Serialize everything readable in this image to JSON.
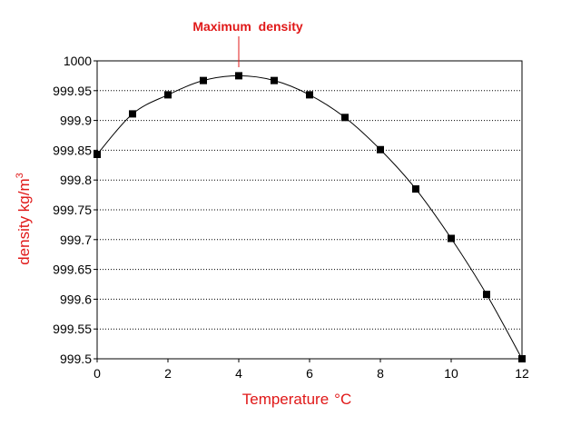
{
  "chart_data": {
    "type": "line",
    "title": "",
    "xlabel": "Temperature",
    "xlabel_unit": "°C",
    "ylabel": "density kg/m",
    "ylabel_sup": "3",
    "xlim": [
      0,
      12
    ],
    "ylim": [
      999.5,
      1000
    ],
    "xticks": [
      "0",
      "2",
      "4",
      "6",
      "8",
      "10",
      "12"
    ],
    "yticks": [
      "999.5",
      "999.55",
      "999.6",
      "999.65",
      "999.7",
      "999.75",
      "999.8",
      "999.85",
      "999.9",
      "999.95",
      "1000"
    ],
    "grid": true,
    "series": [
      {
        "name": "density",
        "x": [
          0,
          1,
          2,
          3,
          4,
          5,
          6,
          7,
          8,
          9,
          10,
          11,
          12
        ],
        "values": [
          999.843,
          999.911,
          999.943,
          999.967,
          999.975,
          999.967,
          999.943,
          999.905,
          999.851,
          999.785,
          999.702,
          999.608,
          999.5
        ]
      }
    ],
    "annotation": {
      "text": "Maximum  density",
      "x": 4
    },
    "colors": {
      "line": "#000000",
      "marker": "#000000",
      "title_text": "#e01818",
      "grid": "#000000"
    }
  }
}
